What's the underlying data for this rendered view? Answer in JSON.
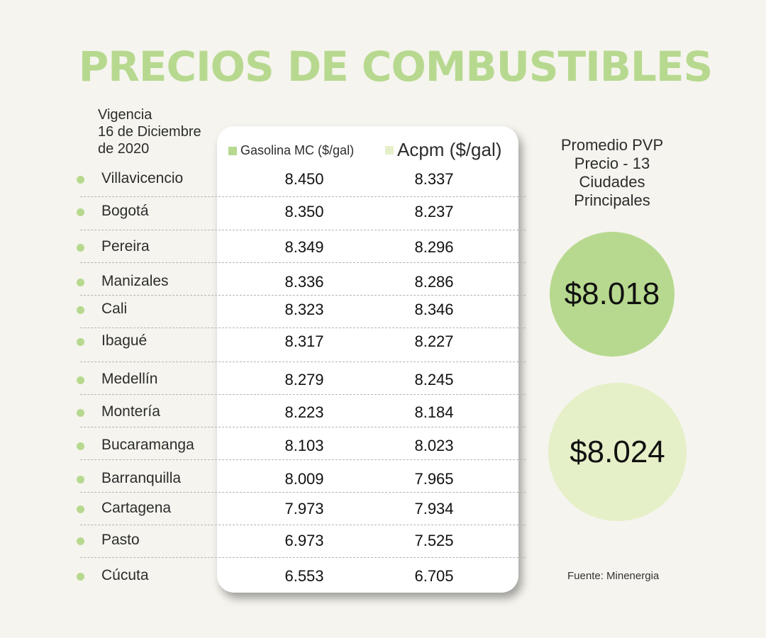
{
  "title": "PRECIOS DE COMBUSTIBLES",
  "validity": [
    "Vigencia",
    "16 de Diciembre",
    "de 2020"
  ],
  "average": {
    "label_lines": [
      "Promedio PVP",
      "Precio - 13",
      "Ciudades",
      "Principales"
    ],
    "gasolina": "$8.018",
    "acpm": "$8.024"
  },
  "source": "Fuente: Minenergia",
  "colors": {
    "gasolina": "#b7d98f",
    "acpm": "#e5f0c8",
    "title": "#b7d98f"
  },
  "chart_data": {
    "type": "table",
    "title": "PRECIOS DE COMBUSTIBLES",
    "columns": [
      "Gasolina MC ($/gal)",
      "Acpm ($/gal)"
    ],
    "series": [
      {
        "name": "Gasolina MC ($/gal)",
        "values": [
          8450,
          8350,
          8349,
          8336,
          8323,
          8317,
          8279,
          8223,
          8103,
          8009,
          7973,
          6973,
          6553
        ]
      },
      {
        "name": "Acpm ($/gal)",
        "values": [
          8337,
          8237,
          8296,
          8286,
          8346,
          8227,
          8245,
          8184,
          8023,
          7965,
          7934,
          7525,
          6705
        ]
      }
    ],
    "rows": [
      {
        "city": "Villavicencio",
        "gasolina": "8.450",
        "acpm": "8.337"
      },
      {
        "city": "Bogotá",
        "gasolina": "8.350",
        "acpm": "8.237"
      },
      {
        "city": "Pereira",
        "gasolina": "8.349",
        "acpm": "8.296"
      },
      {
        "city": "Manizales",
        "gasolina": "8.336",
        "acpm": "8.286"
      },
      {
        "city": "Cali",
        "gasolina": "8.323",
        "acpm": "8.346"
      },
      {
        "city": "Ibagué",
        "gasolina": "8.317",
        "acpm": "8.227"
      },
      {
        "city": "Medellín",
        "gasolina": "8.279",
        "acpm": "8.245"
      },
      {
        "city": "Montería",
        "gasolina": "8.223",
        "acpm": "8.184"
      },
      {
        "city": "Bucaramanga",
        "gasolina": "8.103",
        "acpm": "8.023"
      },
      {
        "city": "Barranquilla",
        "gasolina": "8.009",
        "acpm": "7.965"
      },
      {
        "city": "Cartagena",
        "gasolina": "7.973",
        "acpm": "7.934"
      },
      {
        "city": "Pasto",
        "gasolina": "6.973",
        "acpm": "7.525"
      },
      {
        "city": "Cúcuta",
        "gasolina": "6.553",
        "acpm": "6.705"
      }
    ]
  }
}
